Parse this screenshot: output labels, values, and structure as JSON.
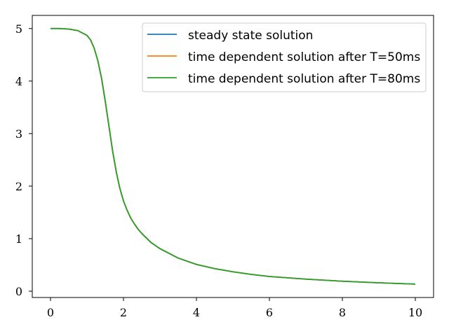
{
  "chart_data": {
    "type": "line",
    "title": "",
    "xlabel": "",
    "ylabel": "",
    "xlim": [
      -0.5,
      10.5
    ],
    "ylim": [
      -0.12,
      5.25
    ],
    "xticks": [
      0,
      2,
      4,
      6,
      8,
      10
    ],
    "xtick_labels": [
      "0",
      "2",
      "4",
      "6",
      "8",
      "10"
    ],
    "yticks": [
      0,
      1,
      2,
      3,
      4,
      5
    ],
    "ytick_labels": [
      "0",
      "1",
      "2",
      "3",
      "4",
      "5"
    ],
    "grid": false,
    "legend_position": "top-right",
    "x": [
      0,
      0.25,
      0.5,
      0.75,
      1.0,
      1.1,
      1.2,
      1.3,
      1.4,
      1.5,
      1.6,
      1.7,
      1.8,
      1.9,
      2.0,
      2.1,
      2.2,
      2.3,
      2.4,
      2.5,
      2.75,
      3.0,
      3.5,
      4.0,
      4.5,
      5.0,
      5.5,
      6.0,
      7.0,
      8.0,
      9.0,
      10.0
    ],
    "series": [
      {
        "name": "steady state solution",
        "color": "#1f77b4",
        "values": [
          5.0,
          5.0,
          4.99,
          4.96,
          4.87,
          4.78,
          4.62,
          4.38,
          4.05,
          3.62,
          3.15,
          2.68,
          2.28,
          1.96,
          1.72,
          1.54,
          1.39,
          1.28,
          1.18,
          1.1,
          0.93,
          0.81,
          0.63,
          0.51,
          0.43,
          0.37,
          0.32,
          0.28,
          0.23,
          0.19,
          0.16,
          0.135
        ]
      },
      {
        "name": "time dependent solution after T=50ms",
        "color": "#ff7f0e",
        "values": [
          5.0,
          5.0,
          4.99,
          4.96,
          4.87,
          4.78,
          4.62,
          4.38,
          4.05,
          3.62,
          3.15,
          2.68,
          2.28,
          1.96,
          1.72,
          1.54,
          1.39,
          1.28,
          1.18,
          1.1,
          0.93,
          0.81,
          0.63,
          0.51,
          0.43,
          0.37,
          0.32,
          0.28,
          0.23,
          0.19,
          0.16,
          0.135
        ]
      },
      {
        "name": "time dependent solution after T=80ms",
        "color": "#2ca02c",
        "values": [
          5.0,
          5.0,
          4.99,
          4.96,
          4.87,
          4.78,
          4.62,
          4.38,
          4.05,
          3.62,
          3.15,
          2.68,
          2.28,
          1.96,
          1.72,
          1.54,
          1.39,
          1.28,
          1.18,
          1.1,
          0.93,
          0.81,
          0.63,
          0.51,
          0.43,
          0.37,
          0.32,
          0.28,
          0.23,
          0.19,
          0.16,
          0.135
        ]
      }
    ]
  }
}
